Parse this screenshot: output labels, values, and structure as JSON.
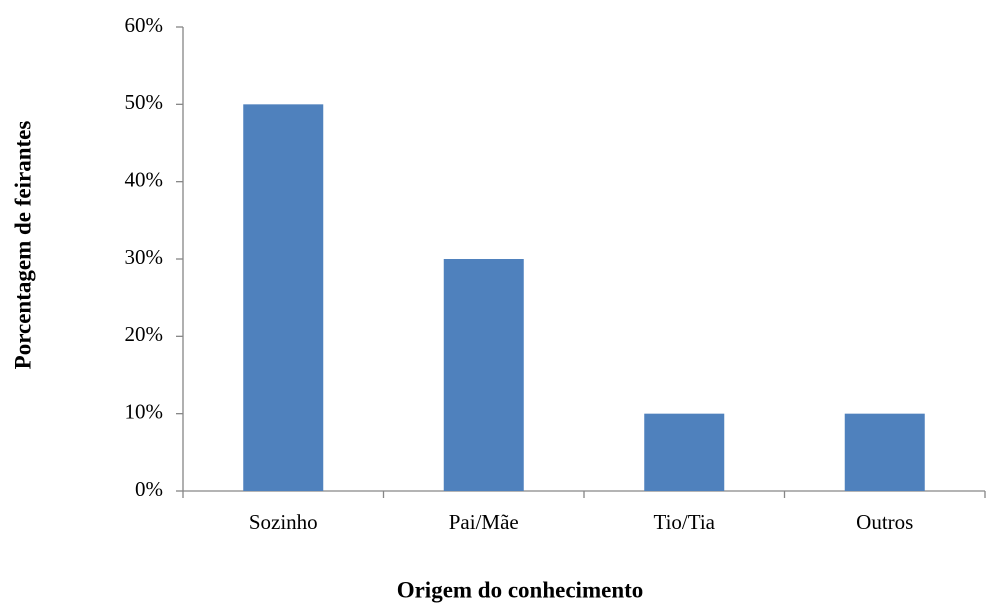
{
  "chart_data": {
    "type": "bar",
    "categories": [
      "Sozinho",
      "Pai/Mãe",
      "Tio/Tia",
      "Outros"
    ],
    "values": [
      50,
      30,
      10,
      10
    ],
    "color": "#4f81bd",
    "xlabel": "Origem do conhecimento",
    "ylabel": "Porcentagem de feirantes",
    "ylim": [
      0,
      60
    ],
    "yticks": [
      {
        "value": 0,
        "label": "0%"
      },
      {
        "value": 10,
        "label": "10%"
      },
      {
        "value": 20,
        "label": "20%"
      },
      {
        "value": 30,
        "label": "30%"
      },
      {
        "value": 40,
        "label": "40%"
      },
      {
        "value": 50,
        "label": "50%"
      },
      {
        "value": 60,
        "label": "60%"
      }
    ],
    "grid": false
  }
}
